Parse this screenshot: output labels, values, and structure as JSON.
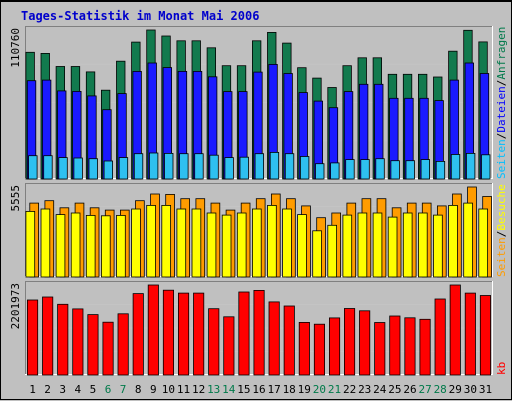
{
  "chart_data": {
    "type": "bar",
    "title": "Tages-Statistik im Monat Mai 2006",
    "categories": [
      "1",
      "2",
      "3",
      "4",
      "5",
      "6",
      "7",
      "8",
      "9",
      "10",
      "11",
      "12",
      "13",
      "14",
      "15",
      "16",
      "17",
      "18",
      "19",
      "20",
      "21",
      "22",
      "23",
      "24",
      "25",
      "26",
      "27",
      "28",
      "29",
      "30",
      "31"
    ],
    "weekend_days": [
      6,
      7,
      13,
      14,
      20,
      21,
      27,
      28
    ],
    "colors": {
      "background": "#c0c0c0",
      "plot": "#c0c0c0",
      "title": "#0000cc",
      "weekday_label": "#000000",
      "weekend_label": "#007a4a",
      "separator": "#c8c8c8",
      "anfragen": "#127a4e",
      "dateien": "#1a1aff",
      "seiten_top": "#2ec0f0",
      "besuche": "#ffff00",
      "seiten_mid": "#ff9c00",
      "kb": "#ff0000"
    },
    "panels": [
      {
        "id": "requests",
        "ymax_label": "110760",
        "ymax": 110760,
        "legend": [
          {
            "text": "Seiten",
            "color": "#00bfff"
          },
          {
            "text": "/",
            "color": "#000000"
          },
          {
            "text": "Dateien",
            "color": "#0000ff"
          },
          {
            "text": "/",
            "color": "#000000"
          },
          {
            "text": "Anfragen",
            "color": "#007a4a"
          }
        ],
        "series": [
          {
            "name": "Anfragen",
            "key": "anfragen",
            "values": [
              94200,
              93400,
              83600,
              83600,
              79600,
              66000,
              87600,
              101800,
              110760,
              106300,
              102700,
              102700,
              97500,
              84200,
              84200,
              102700,
              109000,
              101000,
              82700,
              75000,
              68000,
              84200,
              90100,
              90100,
              77800,
              77800,
              77800,
              75800,
              95000,
              110500,
              101900
            ]
          },
          {
            "name": "Dateien",
            "key": "dateien",
            "values": [
              73100,
              73500,
              65500,
              65100,
              61800,
              51500,
              63500,
              80000,
              86200,
              82800,
              80000,
              80000,
              76000,
              65000,
              65000,
              79500,
              85200,
              78400,
              64200,
              57900,
              53000,
              65000,
              70400,
              70400,
              60000,
              60000,
              60000,
              58300,
              73500,
              86200,
              78400
            ]
          },
          {
            "name": "Seiten",
            "key": "seiten_top",
            "values": [
              17300,
              17300,
              15900,
              15600,
              15100,
              13400,
              15900,
              18800,
              19300,
              19000,
              18800,
              18800,
              17700,
              15900,
              16200,
              18800,
              19800,
              18800,
              16700,
              11400,
              12000,
              14400,
              14400,
              15100,
              13600,
              13600,
              14400,
              13100,
              18200,
              19000,
              18000
            ]
          }
        ]
      },
      {
        "id": "visits",
        "ymax_label": "5555",
        "ymax": 5555,
        "legend": [
          {
            "text": "Seiten",
            "color": "#ff9c00"
          },
          {
            "text": "/",
            "color": "#000000"
          },
          {
            "text": "Besuche",
            "color": "#ffff00"
          }
        ],
        "series": [
          {
            "name": "Seiten",
            "key": "seiten_mid",
            "values": [
              4560,
              4710,
              4270,
              4560,
              4270,
              4130,
              4130,
              4710,
              5120,
              5100,
              4830,
              4830,
              4560,
              4130,
              4560,
              4830,
              5120,
              4830,
              4390,
              3660,
              3950,
              4560,
              4830,
              4830,
              4270,
              4560,
              4560,
              4390,
              5120,
              5555,
              4970
            ]
          },
          {
            "name": "Besuche",
            "key": "besuche",
            "values": [
              4050,
              4200,
              3850,
              3950,
              3800,
              3780,
              3800,
              4200,
              4420,
              4420,
              4200,
              4200,
              3950,
              3820,
              3950,
              4200,
              4420,
              4200,
              3850,
              2850,
              3190,
              3820,
              3950,
              3950,
              3700,
              3950,
              3950,
              3820,
              4420,
              4560,
              4200
            ]
          }
        ]
      },
      {
        "id": "kb",
        "ymax_label": "2201973",
        "ymax": 2201973,
        "legend": [
          {
            "text": "kb",
            "color": "#ff0000"
          }
        ],
        "series": [
          {
            "name": "kb",
            "key": "kb",
            "values": [
              1836000,
              1908000,
              1729000,
              1618000,
              1478000,
              1292000,
              1498000,
              1991000,
              2201973,
              2074000,
              2004000,
              2004000,
              1623000,
              1425000,
              2031000,
              2071000,
              1788000,
              1687000,
              1288000,
              1242000,
              1398000,
              1627000,
              1571000,
              1285000,
              1443000,
              1400000,
              1362000,
              1859000,
              2201973,
              2004000,
              1946000
            ]
          }
        ]
      }
    ]
  }
}
